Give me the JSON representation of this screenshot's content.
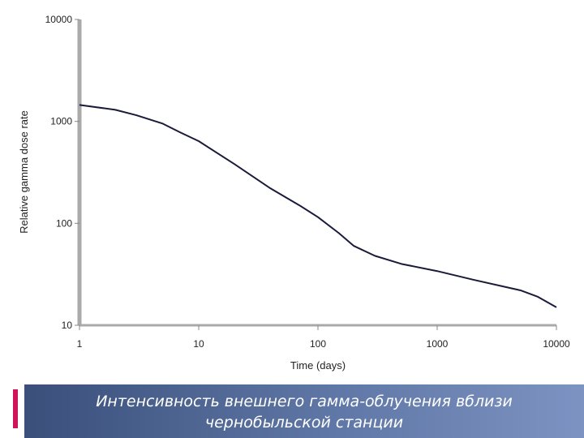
{
  "chart_data": {
    "type": "line",
    "xscale": "log",
    "yscale": "log",
    "xlabel": "Time (days)",
    "ylabel": "Relative gamma dose rate",
    "xlim": [
      1,
      10000
    ],
    "ylim": [
      10,
      10000
    ],
    "x_ticks": [
      "1",
      "10",
      "100",
      "1000",
      "10000"
    ],
    "y_ticks": [
      "10",
      "100",
      "1000",
      "10000"
    ],
    "grid": false,
    "series": [
      {
        "color": "#1a1a3a",
        "x": [
          1,
          2,
          3,
          5,
          7,
          10,
          20,
          40,
          70,
          100,
          150,
          200,
          300,
          500,
          1000,
          2000,
          5000,
          7000,
          10000
        ],
        "y": [
          1450,
          1300,
          1150,
          950,
          780,
          640,
          380,
          220,
          150,
          115,
          80,
          60,
          48,
          40,
          34,
          28,
          22,
          19,
          15
        ]
      }
    ]
  },
  "caption": {
    "line1": "Интенсивность внешнего гамма-облучения вблизи",
    "line2": "чернобыльской станции"
  }
}
